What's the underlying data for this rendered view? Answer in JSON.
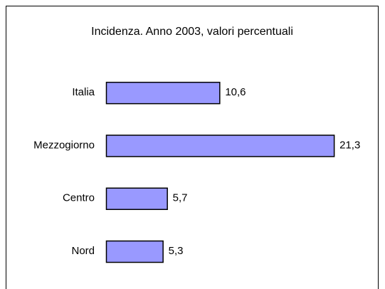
{
  "chart_data": {
    "type": "bar",
    "orientation": "horizontal",
    "title": "Incidenza. Anno 2003, valori percentuali",
    "categories": [
      "Italia",
      "Mezzogiorno",
      "Centro",
      "Nord"
    ],
    "values": [
      10.6,
      21.3,
      5.7,
      5.3
    ],
    "value_labels": [
      "10,6",
      "21,3",
      "5,7",
      "5,3"
    ],
    "color": "#9999ff"
  }
}
